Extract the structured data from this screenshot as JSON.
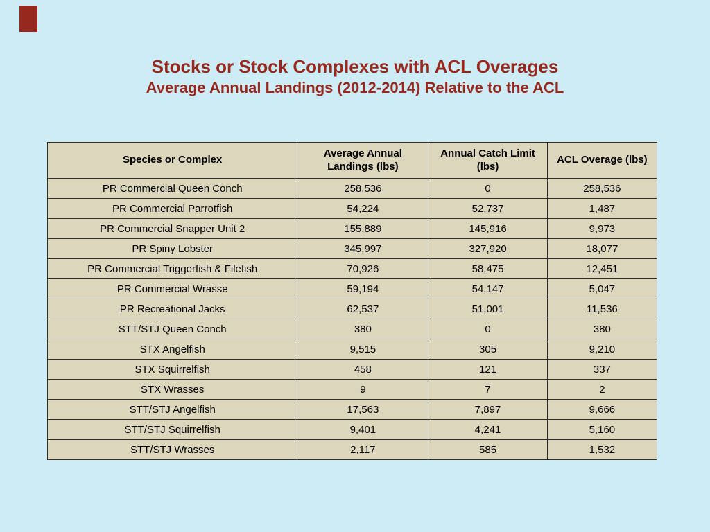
{
  "slide": {
    "title": "Stocks or Stock Complexes with ACL Overages",
    "subtitle": "Average Annual Landings (2012-2014) Relative to the ACL",
    "accent_color": "#96281e",
    "background_color": "#cdecf5",
    "table_cell_color": "#dcd6bd"
  },
  "chart_data": {
    "type": "table",
    "title": "Stocks or Stock Complexes with ACL Overages",
    "subtitle": "Average Annual Landings (2012-2014) Relative to the ACL",
    "headers": [
      "Species or Complex",
      "Average Annual Landings (lbs)",
      "Annual Catch Limit (lbs)",
      "ACL Overage (lbs)"
    ],
    "rows": [
      [
        "PR Commercial Queen Conch",
        "258,536",
        "0",
        "258,536"
      ],
      [
        "PR Commercial Parrotfish",
        "54,224",
        "52,737",
        "1,487"
      ],
      [
        "PR Commercial Snapper Unit 2",
        "155,889",
        "145,916",
        "9,973"
      ],
      [
        "PR Spiny Lobster",
        "345,997",
        "327,920",
        "18,077"
      ],
      [
        "PR Commercial Triggerfish & Filefish",
        "70,926",
        "58,475",
        "12,451"
      ],
      [
        "PR Commercial Wrasse",
        "59,194",
        "54,147",
        "5,047"
      ],
      [
        "PR Recreational Jacks",
        "62,537",
        "51,001",
        "11,536"
      ],
      [
        "STT/STJ Queen Conch",
        "380",
        "0",
        "380"
      ],
      [
        "STX Angelfish",
        "9,515",
        "305",
        "9,210"
      ],
      [
        "STX Squirrelfish",
        "458",
        "121",
        "337"
      ],
      [
        "STX Wrasses",
        "9",
        "7",
        "2"
      ],
      [
        "STT/STJ Angelfish",
        "17,563",
        "7,897",
        "9,666"
      ],
      [
        "STT/STJ Squirrelfish",
        "9,401",
        "4,241",
        "5,160"
      ],
      [
        "STT/STJ Wrasses",
        "2,117",
        "585",
        "1,532"
      ]
    ]
  }
}
